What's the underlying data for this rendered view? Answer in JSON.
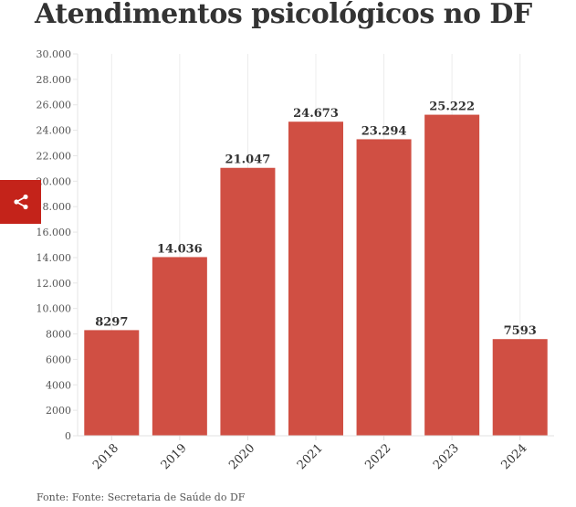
{
  "chart_data": {
    "type": "bar",
    "title": "Atendimentos psicológicos no DF",
    "categories": [
      "2018",
      "2019",
      "2020",
      "2021",
      "2022",
      "2023",
      "2024"
    ],
    "values": [
      8297,
      14036,
      21047,
      24673,
      23294,
      25222,
      7593
    ],
    "data_labels": [
      "8297",
      "14.036",
      "21.047",
      "24.673",
      "23.294",
      "25.222",
      "7593"
    ],
    "yticks": [
      0,
      2000,
      4000,
      6000,
      8000,
      10000,
      12000,
      14000,
      16000,
      18000,
      20000,
      22000,
      24000,
      26000,
      28000,
      30000
    ],
    "ytick_labels": [
      "0",
      "2000",
      "4000",
      "6000",
      "8000",
      "10.000",
      "12.000",
      "14.000",
      "16.000",
      "18.000",
      "20.000",
      "22.000",
      "24.000",
      "26.000",
      "28.000",
      "30.000"
    ],
    "ylim": [
      0,
      30000
    ],
    "xlabel": "",
    "ylabel": "",
    "bar_color": "#d04f43",
    "source": "Fonte: Fonte: Secretaria de Saúde do DF"
  },
  "share": {
    "icon": "share-icon",
    "color": "#c4231a"
  }
}
